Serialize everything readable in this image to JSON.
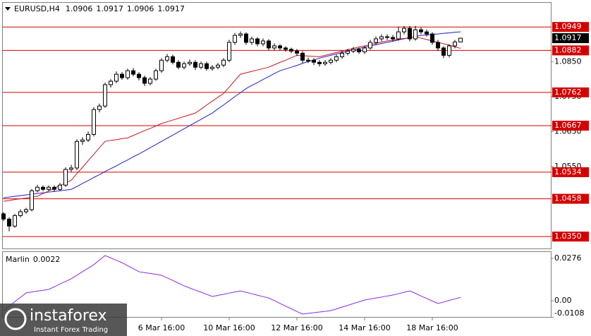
{
  "chart_data": [
    {
      "type": "candlestick",
      "header": "EURUSD,H4",
      "categories": [
        null,
        null,
        null,
        null,
        null,
        null,
        null,
        null,
        null,
        null,
        null,
        null,
        null,
        null,
        null,
        null,
        null,
        null,
        null,
        null,
        null,
        null,
        null,
        null,
        null,
        null,
        null,
        null,
        "6 Mar 16:00",
        null,
        null,
        null,
        null,
        null,
        null,
        null,
        null,
        null,
        null,
        null,
        "10 Mar 16:00",
        null,
        null,
        null,
        null,
        null,
        null,
        null,
        null,
        null,
        null,
        null,
        "12 Mar 16:00",
        null,
        null,
        null,
        null,
        null,
        null,
        null,
        null,
        null,
        null,
        null,
        "14 Mar 16:00",
        null,
        null,
        null,
        null,
        null,
        null,
        null,
        null,
        null,
        null,
        null,
        "18 Mar 16:00",
        null,
        null,
        null,
        null,
        null
      ],
      "open": [
        1.0415,
        1.04,
        1.038,
        1.041,
        1.0421,
        1.0427,
        1.0481,
        1.0491,
        1.0485,
        1.0491,
        1.0485,
        1.0497,
        1.0542,
        1.0546,
        1.0622,
        1.0626,
        1.0642,
        1.0713,
        1.0723,
        1.0784,
        1.0794,
        1.0814,
        1.0804,
        1.0824,
        1.0814,
        1.0804,
        1.0788,
        1.08,
        1.0824,
        1.0854,
        1.0864,
        1.0848,
        1.0834,
        1.0844,
        1.0848,
        1.0834,
        1.0844,
        1.083,
        1.0834,
        1.084,
        1.0854,
        1.0905,
        1.0925,
        1.0929,
        1.0905,
        1.0915,
        1.0901,
        1.0909,
        1.0889,
        1.0895,
        1.0889,
        1.0885,
        1.088,
        1.0874,
        1.0854,
        1.0854,
        1.0848,
        1.0844,
        1.0848,
        1.0854,
        1.0864,
        1.0874,
        1.088,
        1.0885,
        1.0878,
        1.0889,
        1.0905,
        1.0915,
        1.0921,
        1.0919,
        1.0915,
        1.0935,
        1.0945,
        1.0915,
        1.0941,
        1.0935,
        1.0929,
        1.0905,
        1.0889,
        1.0868,
        1.0895,
        1.0906
      ],
      "high": [
        1.042,
        1.0405,
        1.0415,
        1.0428,
        1.0432,
        1.0486,
        1.0498,
        1.0496,
        1.0496,
        1.0496,
        1.0503,
        1.0548,
        1.0555,
        1.0628,
        1.0634,
        1.065,
        1.072,
        1.073,
        1.079,
        1.08,
        1.0822,
        1.082,
        1.083,
        1.0832,
        1.082,
        1.081,
        1.0806,
        1.083,
        1.086,
        1.0872,
        1.087,
        1.0854,
        1.085,
        1.0856,
        1.0854,
        1.085,
        1.085,
        1.084,
        1.0846,
        1.086,
        1.0912,
        1.0932,
        1.0936,
        1.0934,
        1.0922,
        1.092,
        1.0916,
        1.0914,
        1.0902,
        1.09,
        1.0894,
        1.089,
        1.0886,
        1.088,
        1.0862,
        1.086,
        1.0854,
        1.0854,
        1.086,
        1.087,
        1.088,
        1.0886,
        1.0892,
        1.089,
        1.0895,
        1.0912,
        1.0922,
        1.0928,
        1.0928,
        1.0926,
        1.095,
        1.0952,
        1.0952,
        1.0952,
        1.0948,
        1.0942,
        1.0934,
        1.0912,
        1.0894,
        1.09,
        1.0912,
        1.0917
      ],
      "low": [
        1.0395,
        1.0365,
        1.0375,
        1.0405,
        1.0415,
        1.0422,
        1.0476,
        1.048,
        1.048,
        1.0478,
        1.048,
        1.0492,
        1.0535,
        1.054,
        1.0612,
        1.062,
        1.0636,
        1.0705,
        1.0718,
        1.0776,
        1.0788,
        1.0798,
        1.0798,
        1.0808,
        1.0796,
        1.078,
        1.0782,
        1.0795,
        1.0818,
        1.0848,
        1.0842,
        1.0828,
        1.0828,
        1.0838,
        1.0826,
        1.0828,
        1.0824,
        1.0824,
        1.0828,
        1.0834,
        1.0848,
        1.0898,
        1.0918,
        1.0898,
        1.0898,
        1.0894,
        1.0894,
        1.0882,
        1.0882,
        1.0882,
        1.0878,
        1.0874,
        1.0866,
        1.0846,
        1.0846,
        1.084,
        1.0836,
        1.0838,
        1.0842,
        1.0848,
        1.0858,
        1.0868,
        1.0874,
        1.0872,
        1.0872,
        1.0884,
        1.0898,
        1.0908,
        1.0912,
        1.0908,
        1.091,
        1.0928,
        1.0908,
        1.091,
        1.0928,
        1.0922,
        1.0898,
        1.088,
        1.086,
        1.0862,
        1.0888,
        1.0906
      ],
      "close": [
        1.04,
        1.038,
        1.041,
        1.0421,
        1.0427,
        1.0481,
        1.0491,
        1.0485,
        1.0491,
        1.0485,
        1.0497,
        1.0542,
        1.0546,
        1.0622,
        1.0626,
        1.0642,
        1.0713,
        1.0723,
        1.0784,
        1.0794,
        1.0814,
        1.0804,
        1.0824,
        1.0814,
        1.0804,
        1.0788,
        1.08,
        1.0824,
        1.0854,
        1.0864,
        1.0848,
        1.0834,
        1.0844,
        1.0848,
        1.0834,
        1.0844,
        1.083,
        1.0834,
        1.084,
        1.0854,
        1.0905,
        1.0925,
        1.0929,
        1.0905,
        1.0915,
        1.0901,
        1.0909,
        1.0889,
        1.0895,
        1.0889,
        1.0885,
        1.088,
        1.0874,
        1.0854,
        1.0854,
        1.0848,
        1.0844,
        1.0848,
        1.0854,
        1.0864,
        1.0874,
        1.088,
        1.0885,
        1.0878,
        1.0889,
        1.0905,
        1.0915,
        1.0921,
        1.0919,
        1.0915,
        1.0935,
        1.0945,
        1.0915,
        1.0941,
        1.0935,
        1.0929,
        1.0905,
        1.0889,
        1.0868,
        1.0895,
        1.0906,
        1.0917
      ],
      "series": [
        {
          "color": "#1f1fc8",
          "values": [
            1.0461,
            1.0463,
            1.0465,
            1.0467,
            1.0469,
            1.0471,
            1.0473,
            1.0475,
            1.0477,
            1.0479,
            1.0481,
            1.0483,
            1.0485,
            1.0493,
            1.0502,
            1.051,
            1.0519,
            1.0527,
            1.0536,
            1.0544,
            1.0552,
            1.0561,
            1.0569,
            1.0578,
            1.0586,
            1.0595,
            1.0604,
            1.0613,
            1.0622,
            1.0631,
            1.064,
            1.0649,
            1.0658,
            1.0667,
            1.0676,
            1.0685,
            1.0694,
            1.0703,
            1.0715,
            1.0726,
            1.0738,
            1.075,
            1.0761,
            1.0773,
            1.0782,
            1.079,
            1.0799,
            1.0807,
            1.0816,
            1.0824,
            1.0829,
            1.0834,
            1.0839,
            1.0845,
            1.085,
            1.0855,
            1.086,
            1.0864,
            1.0868,
            1.0872,
            1.0876,
            1.088,
            1.0884,
            1.0888,
            1.0891,
            1.0895,
            1.0898,
            1.0902,
            1.0905,
            1.0908,
            1.0912,
            1.0915,
            1.0918,
            1.0922,
            1.0925,
            1.0926,
            1.0928,
            1.0929,
            1.0931,
            1.0932,
            1.0934,
            1.0935
          ]
        },
        {
          "color": "#c8141e",
          "values": [
            1.0451,
            1.0453,
            1.0456,
            1.0458,
            1.046,
            1.0463,
            1.0465,
            1.0473,
            1.048,
            1.0488,
            1.0496,
            1.0503,
            1.0511,
            1.053,
            1.0548,
            1.0567,
            1.0585,
            1.0604,
            1.0622,
            1.0625,
            1.0627,
            1.063,
            1.0632,
            1.0639,
            1.0646,
            1.0653,
            1.0659,
            1.0666,
            1.0673,
            1.0678,
            1.0683,
            1.0688,
            1.0693,
            1.0698,
            1.0703,
            1.0714,
            1.0726,
            1.0737,
            1.0748,
            1.0759,
            1.0777,
            1.0796,
            1.0814,
            1.0818,
            1.0822,
            1.0826,
            1.083,
            1.0834,
            1.0841,
            1.0848,
            1.0854,
            1.0861,
            1.0868,
            1.0867,
            1.0866,
            1.0865,
            1.0864,
            1.0868,
            1.0872,
            1.0876,
            1.088,
            1.0884,
            1.0888,
            1.0892,
            1.0895,
            1.0899,
            1.0902,
            1.0906,
            1.0909,
            1.0911,
            1.0914,
            1.0916,
            1.0919,
            1.0921,
            1.0917,
            1.0913,
            1.0909,
            1.0905,
            1.0901,
            1.0897,
            1.0892,
            1.0888
          ]
        }
      ],
      "candle_colors": {
        "up": "#ffffff",
        "down": "#000000",
        "outline": "#000000"
      },
      "levels": [
        1.0949,
        1.0882,
        1.0762,
        1.0667,
        1.0534,
        1.0458,
        {
          "value": 1.035,
          "label": "1.0350"
        }
      ],
      "level_color": "#d40000",
      "ylim": [
        1.0316,
        1.102
      ],
      "yticks": [
        {
          "value": 1.085,
          "label": "1.0850"
        },
        {
          "value": 1.075,
          "label": "1.0750"
        },
        {
          "value": 1.065,
          "label": "1.0650"
        },
        {
          "value": 1.055,
          "label": "1.0550"
        }
      ],
      "grid": false
    },
    {
      "type": "line",
      "title": "Marlin",
      "color": "#8a2be2",
      "values": [
        -0.0064,
        -0.0035,
        -0.0006,
        0.0022,
        0.0051,
        0.0057,
        0.0063,
        0.0068,
        0.0074,
        0.0091,
        0.0109,
        0.0126,
        0.0143,
        0.0166,
        0.0189,
        0.0212,
        0.0235,
        0.0265,
        0.0294,
        0.0279,
        0.0263,
        0.0248,
        0.0228,
        0.0209,
        0.0189,
        0.0183,
        0.0178,
        0.0172,
        0.0166,
        0.0149,
        0.0132,
        0.0114,
        0.0097,
        0.0083,
        0.0069,
        0.0056,
        0.0042,
        0.0028,
        0.0035,
        0.0042,
        0.005,
        0.0057,
        0.0064,
        0.0055,
        0.0046,
        0.0036,
        0.0027,
        0.0018,
        0.0001,
        -0.0017,
        -0.0035,
        -0.0052,
        -0.007,
        -0.0087,
        -0.0082,
        -0.0078,
        -0.0073,
        -0.0069,
        -0.0064,
        -0.0053,
        -0.0041,
        -0.003,
        -0.0018,
        -0.0007,
        0.0005,
        0.0011,
        0.0018,
        0.0024,
        0.0031,
        0.0037,
        0.0046,
        0.0055,
        0.0064,
        0.0048,
        0.0031,
        0.0015,
        -0.0002,
        -0.0018,
        -0.0008,
        0.0002,
        0.0012,
        0.0022
      ],
      "ylim": [
        -0.011,
        0.0322
      ],
      "yticks": [
        0.0276,
        {
          "value": 0,
          "label": "0.00"
        },
        -0.0108
      ],
      "grid": false
    }
  ],
  "watermark": {
    "brand": "instaforex",
    "tagline": "Instant Forex Trading"
  }
}
